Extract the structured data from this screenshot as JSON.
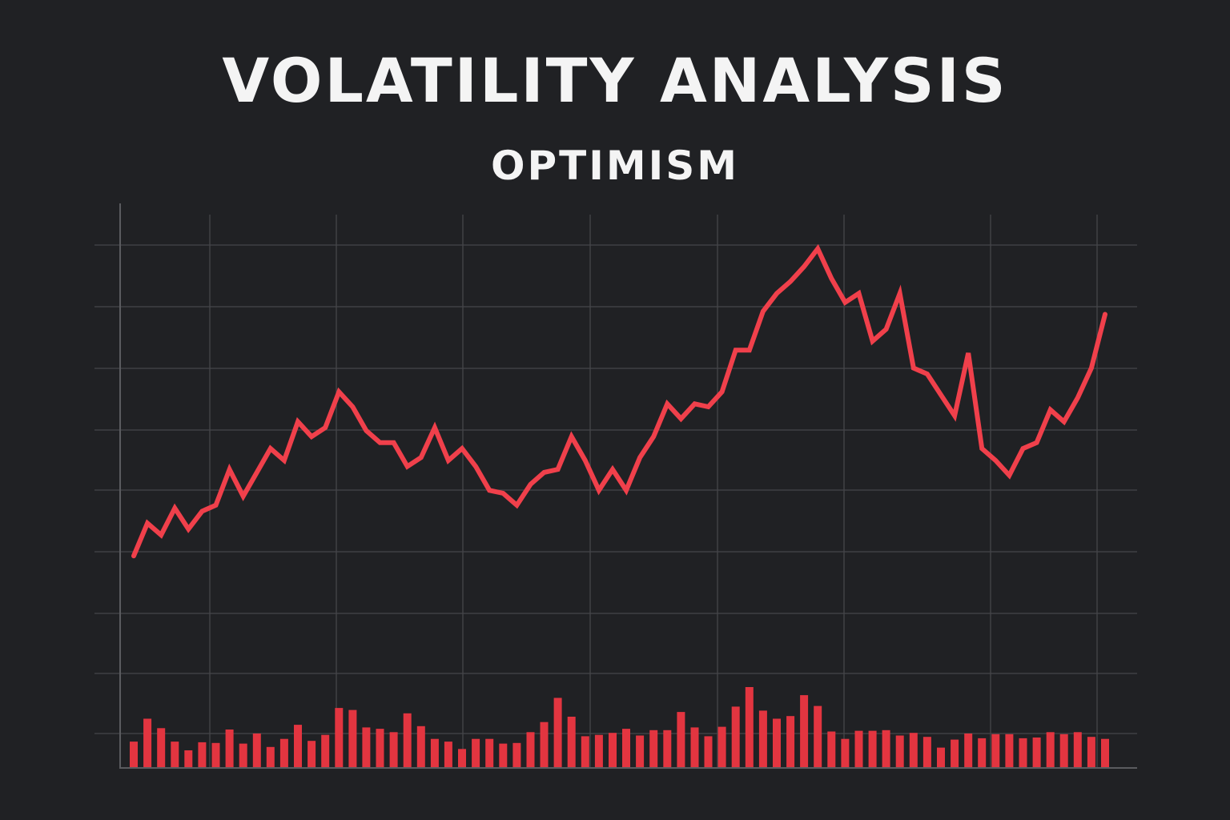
{
  "title": "VOLATILITY ANALYSIS",
  "subtitle": "OPTIMISM",
  "chart_data": {
    "type": "line",
    "grid": true,
    "legend": "none",
    "x_range": [
      0,
      71
    ],
    "price_ylim": [
      0,
      10
    ],
    "volume_ylim": [
      0,
      10
    ],
    "colors": {
      "background": "#202124",
      "grid": "#45464a",
      "axis": "#5a5b5f",
      "line": "#f0404b",
      "bars": "#e33540",
      "text": "#f4f4f4"
    },
    "series": [
      {
        "kind": "line",
        "x": [
          0,
          1,
          2,
          3,
          4,
          5,
          6,
          7,
          8,
          9,
          10,
          11,
          12,
          13,
          14,
          15,
          16,
          17,
          18,
          19,
          20,
          21,
          22,
          23,
          24,
          25,
          26,
          27,
          28,
          29,
          30,
          31,
          32,
          33,
          34,
          35,
          36,
          37,
          38,
          39,
          40,
          41,
          42,
          43,
          44,
          45,
          46,
          47,
          48,
          49,
          50,
          51,
          52,
          53,
          54,
          55,
          56,
          57,
          58,
          59,
          60,
          61,
          62,
          63,
          64,
          65,
          66,
          67,
          68,
          69,
          70,
          71
        ],
        "values": [
          0.95,
          1.5,
          1.3,
          1.75,
          1.4,
          1.7,
          1.8,
          2.4,
          1.95,
          2.35,
          2.75,
          2.55,
          3.2,
          2.95,
          3.1,
          3.7,
          3.45,
          3.05,
          2.85,
          2.85,
          2.45,
          2.6,
          3.1,
          2.55,
          2.75,
          2.45,
          2.05,
          2.0,
          1.8,
          2.15,
          2.35,
          2.4,
          2.95,
          2.55,
          2.05,
          2.4,
          2.05,
          2.6,
          2.95,
          3.5,
          3.25,
          3.5,
          3.45,
          3.7,
          4.4,
          4.4,
          5.05,
          5.35,
          5.55,
          5.8,
          6.1,
          5.6,
          5.2,
          5.35,
          4.55,
          4.75,
          5.35,
          4.1,
          4.0,
          3.65,
          3.3,
          4.35,
          2.75,
          2.55,
          2.3,
          2.75,
          2.85,
          3.4,
          3.2,
          3.6,
          4.1,
          5.0
        ]
      },
      {
        "kind": "bar",
        "x": [
          0,
          1,
          2,
          3,
          4,
          5,
          6,
          7,
          8,
          9,
          10,
          11,
          12,
          13,
          14,
          15,
          16,
          17,
          18,
          19,
          20,
          21,
          22,
          23,
          24,
          25,
          26,
          27,
          28,
          29,
          30,
          31,
          32,
          33,
          34,
          35,
          36,
          37,
          38,
          39,
          40,
          41,
          42,
          43,
          44,
          45,
          46,
          47,
          48,
          49,
          50,
          51,
          52,
          53,
          54,
          55,
          56,
          57,
          58,
          59,
          60,
          61,
          62,
          63,
          64,
          65,
          66,
          67,
          68,
          69,
          70,
          71
        ],
        "values": [
          1.9,
          3.6,
          2.9,
          1.9,
          1.25,
          1.85,
          1.8,
          2.8,
          1.75,
          2.5,
          1.5,
          2.1,
          3.15,
          1.95,
          2.4,
          4.4,
          4.25,
          2.95,
          2.85,
          2.6,
          4.0,
          3.05,
          2.1,
          1.9,
          1.35,
          2.1,
          2.1,
          1.75,
          1.8,
          2.6,
          3.35,
          5.15,
          3.75,
          2.3,
          2.4,
          2.55,
          2.85,
          2.35,
          2.75,
          2.75,
          4.1,
          2.95,
          2.3,
          3.0,
          4.5,
          5.95,
          4.2,
          3.6,
          3.8,
          5.35,
          4.55,
          2.65,
          2.1,
          2.7,
          2.7,
          2.75,
          2.35,
          2.55,
          2.25,
          1.45,
          2.05,
          2.5,
          2.15,
          2.45,
          2.45,
          2.15,
          2.2,
          2.6,
          2.45,
          2.6,
          2.25,
          2.1
        ]
      }
    ]
  }
}
